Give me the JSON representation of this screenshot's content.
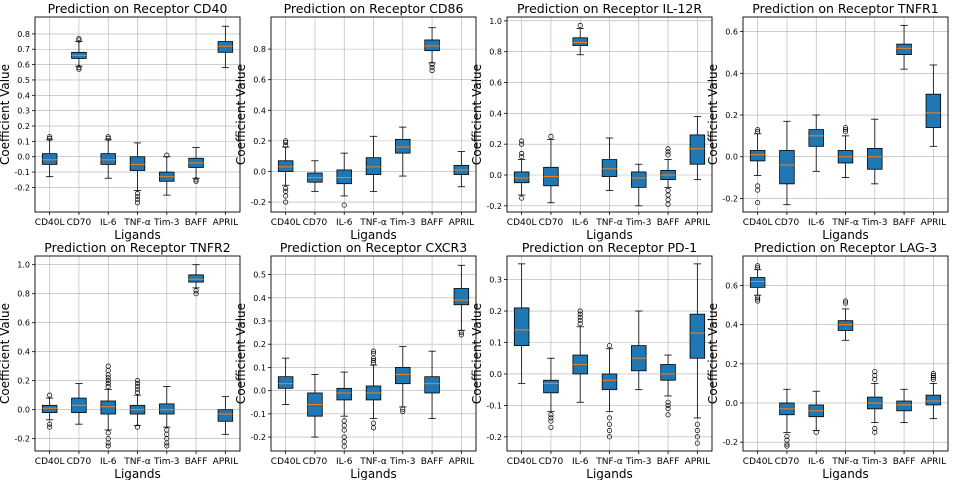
{
  "chart_data": [
    {
      "type": "box",
      "title": "Prediction on Receptor CD40",
      "xlabel": "Ligands",
      "ylabel": "Coefficient Value",
      "categories": [
        "CD40L",
        "CD70",
        "IL-6",
        "TNF-α",
        "Tim-3",
        "BAFF",
        "APRIL"
      ],
      "ylim": [
        -0.36,
        0.91
      ],
      "yticks": [
        -0.2,
        -0.1,
        0.0,
        0.1,
        0.2,
        0.3,
        0.4,
        0.5,
        0.6,
        0.7,
        0.8
      ],
      "boxes": [
        {
          "q1": -0.05,
          "median": -0.02,
          "q3": 0.02,
          "whislo": -0.13,
          "whishi": 0.11,
          "fliers": [
            0.12,
            0.13
          ]
        },
        {
          "q1": 0.64,
          "median": 0.66,
          "q3": 0.68,
          "whislo": 0.59,
          "whishi": 0.75,
          "fliers": [
            0.57,
            0.58,
            0.76,
            0.77
          ]
        },
        {
          "q1": -0.05,
          "median": -0.02,
          "q3": 0.02,
          "whislo": -0.14,
          "whishi": 0.11,
          "fliers": [
            0.12,
            0.13
          ]
        },
        {
          "q1": -0.09,
          "median": -0.05,
          "q3": 0.0,
          "whislo": -0.22,
          "whishi": 0.09,
          "fliers": [
            -0.24,
            -0.26,
            -0.28,
            -0.3
          ]
        },
        {
          "q1": -0.16,
          "median": -0.13,
          "q3": -0.1,
          "whislo": -0.25,
          "whishi": 0.0,
          "fliers": [
            0.01
          ]
        },
        {
          "q1": -0.07,
          "median": -0.04,
          "q3": -0.01,
          "whislo": -0.14,
          "whishi": 0.06,
          "fliers": [
            -0.15,
            -0.16
          ]
        },
        {
          "q1": 0.68,
          "median": 0.72,
          "q3": 0.75,
          "whislo": 0.58,
          "whishi": 0.85,
          "fliers": []
        }
      ]
    },
    {
      "type": "box",
      "title": "Prediction on Receptor CD86",
      "xlabel": "Ligands",
      "ylabel": "Coefficient Value",
      "categories": [
        "CD40L",
        "CD70",
        "IL-6",
        "TNF-α",
        "Tim-3",
        "BAFF",
        "APRIL"
      ],
      "ylim": [
        -0.265,
        1.01
      ],
      "yticks": [
        -0.2,
        0.0,
        0.2,
        0.4,
        0.6,
        0.8
      ],
      "boxes": [
        {
          "q1": 0.0,
          "median": 0.03,
          "q3": 0.07,
          "whislo": -0.09,
          "whishi": 0.16,
          "fliers": [
            -0.11,
            -0.13,
            -0.16,
            -0.2,
            0.17,
            0.19,
            0.2
          ]
        },
        {
          "q1": -0.07,
          "median": -0.04,
          "q3": -0.01,
          "whislo": -0.13,
          "whishi": 0.07,
          "fliers": []
        },
        {
          "q1": -0.08,
          "median": -0.04,
          "q3": 0.01,
          "whislo": -0.16,
          "whishi": 0.12,
          "fliers": [
            -0.22
          ]
        },
        {
          "q1": -0.02,
          "median": 0.03,
          "q3": 0.09,
          "whislo": -0.13,
          "whishi": 0.23,
          "fliers": []
        },
        {
          "q1": 0.12,
          "median": 0.16,
          "q3": 0.21,
          "whislo": -0.03,
          "whishi": 0.29,
          "fliers": []
        },
        {
          "q1": 0.79,
          "median": 0.82,
          "q3": 0.86,
          "whislo": 0.71,
          "whishi": 0.94,
          "fliers": [
            0.66,
            0.68,
            0.7
          ]
        },
        {
          "q1": -0.02,
          "median": 0.01,
          "q3": 0.04,
          "whislo": -0.1,
          "whishi": 0.13,
          "fliers": []
        }
      ]
    },
    {
      "type": "box",
      "title": "Prediction on Receptor IL-12R",
      "xlabel": "Ligands",
      "ylabel": "Coefficient Value",
      "categories": [
        "CD40L",
        "CD70",
        "IL-6",
        "TNF-α",
        "Tim-3",
        "BAFF",
        "APRIL"
      ],
      "ylim": [
        -0.24,
        1.025
      ],
      "yticks": [
        -0.2,
        0.0,
        0.2,
        0.4,
        0.6,
        0.8,
        1.0
      ],
      "boxes": [
        {
          "q1": -0.05,
          "median": -0.02,
          "q3": 0.02,
          "whislo": -0.13,
          "whishi": 0.1,
          "fliers": [
            -0.15,
            0.12,
            0.14,
            0.2,
            0.22
          ]
        },
        {
          "q1": -0.07,
          "median": -0.01,
          "q3": 0.05,
          "whislo": -0.18,
          "whishi": 0.23,
          "fliers": [
            0.25
          ]
        },
        {
          "q1": 0.84,
          "median": 0.86,
          "q3": 0.89,
          "whislo": 0.78,
          "whishi": 0.95,
          "fliers": [
            0.97
          ]
        },
        {
          "q1": -0.01,
          "median": 0.04,
          "q3": 0.1,
          "whislo": -0.1,
          "whishi": 0.24,
          "fliers": []
        },
        {
          "q1": -0.08,
          "median": -0.02,
          "q3": 0.02,
          "whislo": -0.2,
          "whishi": 0.07,
          "fliers": []
        },
        {
          "q1": -0.03,
          "median": 0.0,
          "q3": 0.03,
          "whislo": -0.08,
          "whishi": 0.1,
          "fliers": [
            -0.1,
            -0.13,
            -0.16,
            -0.19,
            0.13,
            0.15,
            0.17
          ]
        },
        {
          "q1": 0.07,
          "median": 0.17,
          "q3": 0.26,
          "whislo": -0.03,
          "whishi": 0.38,
          "fliers": []
        }
      ]
    },
    {
      "type": "box",
      "title": "Prediction on Receptor TNFR1",
      "xlabel": "Ligands",
      "ylabel": "Coefficient Value",
      "categories": [
        "CD40L",
        "CD70",
        "IL-6",
        "TNF-α",
        "Tim-3",
        "BAFF",
        "APRIL"
      ],
      "ylim": [
        -0.265,
        0.67
      ],
      "yticks": [
        -0.2,
        0.0,
        0.2,
        0.4,
        0.6
      ],
      "boxes": [
        {
          "q1": -0.02,
          "median": 0.01,
          "q3": 0.03,
          "whislo": -0.09,
          "whishi": 0.11,
          "fliers": [
            -0.14,
            -0.16,
            -0.22,
            0.12,
            0.13
          ]
        },
        {
          "q1": -0.13,
          "median": -0.04,
          "q3": 0.03,
          "whislo": -0.23,
          "whishi": 0.17,
          "fliers": []
        },
        {
          "q1": 0.05,
          "median": 0.1,
          "q3": 0.13,
          "whislo": -0.07,
          "whishi": 0.2,
          "fliers": []
        },
        {
          "q1": -0.03,
          "median": 0.0,
          "q3": 0.03,
          "whislo": -0.1,
          "whishi": 0.1,
          "fliers": [
            0.12,
            0.13,
            0.14
          ]
        },
        {
          "q1": -0.06,
          "median": 0.0,
          "q3": 0.04,
          "whislo": -0.13,
          "whishi": 0.18,
          "fliers": []
        },
        {
          "q1": 0.49,
          "median": 0.52,
          "q3": 0.54,
          "whislo": 0.42,
          "whishi": 0.63,
          "fliers": []
        },
        {
          "q1": 0.14,
          "median": 0.21,
          "q3": 0.3,
          "whislo": 0.05,
          "whishi": 0.44,
          "fliers": []
        }
      ]
    },
    {
      "type": "box",
      "title": "Prediction on Receptor TNFR2",
      "xlabel": "Ligands",
      "ylabel": "Coefficient Value",
      "categories": [
        "CD40L",
        "CD70",
        "IL-6",
        "TNF-α",
        "Tim-3",
        "BAFF",
        "APRIL"
      ],
      "ylim": [
        -0.285,
        1.06
      ],
      "yticks": [
        -0.2,
        0.0,
        0.2,
        0.4,
        0.6,
        0.8,
        1.0
      ],
      "boxes": [
        {
          "q1": -0.02,
          "median": 0.01,
          "q3": 0.03,
          "whislo": -0.07,
          "whishi": 0.08,
          "fliers": [
            -0.1,
            -0.12,
            0.1
          ]
        },
        {
          "q1": -0.02,
          "median": 0.03,
          "q3": 0.08,
          "whislo": -0.1,
          "whishi": 0.18,
          "fliers": []
        },
        {
          "q1": -0.03,
          "median": 0.02,
          "q3": 0.06,
          "whislo": -0.14,
          "whishi": 0.14,
          "fliers": [
            -0.16,
            -0.2,
            -0.23,
            -0.25,
            0.16,
            0.18,
            0.2,
            0.22,
            0.24,
            0.27,
            0.3
          ]
        },
        {
          "q1": -0.03,
          "median": 0.0,
          "q3": 0.03,
          "whislo": -0.11,
          "whishi": 0.1,
          "fliers": [
            -0.12,
            0.12,
            0.14,
            0.16,
            0.18,
            0.2
          ]
        },
        {
          "q1": -0.03,
          "median": 0.0,
          "q3": 0.04,
          "whislo": -0.12,
          "whishi": 0.16,
          "fliers": [
            -0.14,
            -0.17,
            -0.2,
            -0.23,
            -0.25
          ]
        },
        {
          "q1": 0.88,
          "median": 0.9,
          "q3": 0.93,
          "whislo": 0.84,
          "whishi": 1.0,
          "fliers": [
            0.8,
            0.82
          ]
        },
        {
          "q1": -0.08,
          "median": -0.03,
          "q3": 0.0,
          "whislo": -0.17,
          "whishi": 0.09,
          "fliers": []
        }
      ]
    },
    {
      "type": "box",
      "title": "Prediction on Receptor CXCR3",
      "xlabel": "Ligands",
      "ylabel": "Coefficient Value",
      "categories": [
        "CD40L",
        "CD70",
        "IL-6",
        "TNF-α",
        "Tim-3",
        "BAFF",
        "APRIL"
      ],
      "ylim": [
        -0.26,
        0.58
      ],
      "yticks": [
        -0.2,
        -0.1,
        0.0,
        0.1,
        0.2,
        0.3,
        0.4,
        0.5
      ],
      "boxes": [
        {
          "q1": 0.01,
          "median": 0.03,
          "q3": 0.06,
          "whislo": -0.06,
          "whishi": 0.14,
          "fliers": []
        },
        {
          "q1": -0.11,
          "median": -0.06,
          "q3": -0.01,
          "whislo": -0.2,
          "whishi": 0.07,
          "fliers": []
        },
        {
          "q1": -0.04,
          "median": -0.01,
          "q3": 0.01,
          "whislo": -0.11,
          "whishi": 0.08,
          "fliers": [
            -0.13,
            -0.15,
            -0.17,
            -0.2,
            -0.22,
            -0.24
          ]
        },
        {
          "q1": -0.04,
          "median": -0.01,
          "q3": 0.02,
          "whislo": -0.12,
          "whishi": 0.11,
          "fliers": [
            -0.14,
            -0.16,
            0.12,
            0.13,
            0.14,
            0.16,
            0.17
          ]
        },
        {
          "q1": 0.03,
          "median": 0.07,
          "q3": 0.1,
          "whislo": -0.07,
          "whishi": 0.19,
          "fliers": [
            -0.08,
            -0.09
          ]
        },
        {
          "q1": -0.01,
          "median": 0.03,
          "q3": 0.06,
          "whislo": -0.12,
          "whishi": 0.17,
          "fliers": []
        },
        {
          "q1": 0.37,
          "median": 0.39,
          "q3": 0.44,
          "whislo": 0.26,
          "whishi": 0.54,
          "fliers": [
            0.24,
            0.25
          ]
        }
      ]
    },
    {
      "type": "box",
      "title": "Prediction on Receptor PD-1",
      "xlabel": "Ligands",
      "ylabel": "Coefficient Value",
      "categories": [
        "CD40L",
        "CD70",
        "IL-6",
        "TNF-α",
        "Tim-3",
        "BAFF",
        "APRIL"
      ],
      "ylim": [
        -0.245,
        0.375
      ],
      "yticks": [
        -0.2,
        -0.1,
        0.0,
        0.1,
        0.2,
        0.3
      ],
      "boxes": [
        {
          "q1": 0.09,
          "median": 0.14,
          "q3": 0.21,
          "whislo": -0.03,
          "whishi": 0.35,
          "fliers": []
        },
        {
          "q1": -0.06,
          "median": -0.03,
          "q3": -0.02,
          "whislo": -0.12,
          "whishi": 0.05,
          "fliers": [
            -0.13,
            -0.14,
            -0.15,
            -0.17
          ]
        },
        {
          "q1": 0.0,
          "median": 0.03,
          "q3": 0.06,
          "whislo": -0.09,
          "whishi": 0.15,
          "fliers": [
            0.16,
            0.17,
            0.18,
            0.19,
            0.2
          ]
        },
        {
          "q1": -0.05,
          "median": -0.02,
          "q3": 0.0,
          "whislo": -0.12,
          "whishi": 0.08,
          "fliers": [
            -0.14,
            -0.16,
            -0.18,
            -0.2,
            0.09
          ]
        },
        {
          "q1": 0.01,
          "median": 0.05,
          "q3": 0.09,
          "whislo": -0.05,
          "whishi": 0.2,
          "fliers": []
        },
        {
          "q1": -0.02,
          "median": 0.0,
          "q3": 0.03,
          "whislo": -0.07,
          "whishi": 0.06,
          "fliers": [
            -0.09,
            -0.1,
            -0.11,
            -0.13
          ]
        },
        {
          "q1": 0.05,
          "median": 0.13,
          "q3": 0.19,
          "whislo": -0.14,
          "whishi": 0.35,
          "fliers": [
            -0.16,
            -0.18,
            -0.2,
            -0.22
          ]
        }
      ]
    },
    {
      "type": "box",
      "title": "Prediction on Receptor LAG-3",
      "xlabel": "Ligands",
      "ylabel": "Coefficient Value",
      "categories": [
        "CD40L",
        "CD70",
        "IL-6",
        "TNF-α",
        "Tim-3",
        "BAFF",
        "APRIL"
      ],
      "ylim": [
        -0.245,
        0.75
      ],
      "yticks": [
        -0.2,
        0.0,
        0.2,
        0.4,
        0.6
      ],
      "boxes": [
        {
          "q1": 0.59,
          "median": 0.62,
          "q3": 0.64,
          "whislo": 0.55,
          "whishi": 0.68,
          "fliers": [
            0.52,
            0.53,
            0.54,
            0.69,
            0.7
          ]
        },
        {
          "q1": -0.06,
          "median": -0.03,
          "q3": 0.0,
          "whislo": -0.15,
          "whishi": 0.07,
          "fliers": [
            -0.17,
            -0.19,
            -0.21,
            -0.22
          ]
        },
        {
          "q1": -0.07,
          "median": -0.04,
          "q3": -0.01,
          "whislo": -0.14,
          "whishi": 0.06,
          "fliers": [
            -0.15
          ]
        },
        {
          "q1": 0.37,
          "median": 0.4,
          "q3": 0.42,
          "whislo": 0.32,
          "whishi": 0.48,
          "fliers": [
            0.51,
            0.52
          ]
        },
        {
          "q1": -0.03,
          "median": 0.0,
          "q3": 0.03,
          "whislo": -0.1,
          "whishi": 0.1,
          "fliers": [
            -0.13,
            -0.15,
            0.12,
            0.14,
            0.16
          ]
        },
        {
          "q1": -0.04,
          "median": -0.01,
          "q3": 0.01,
          "whislo": -0.1,
          "whishi": 0.07,
          "fliers": []
        },
        {
          "q1": -0.01,
          "median": 0.01,
          "q3": 0.04,
          "whislo": -0.08,
          "whishi": 0.1,
          "fliers": [
            0.12,
            0.13,
            0.14,
            0.15
          ]
        }
      ]
    }
  ],
  "colors": {
    "box": "#1f77b4",
    "median": "#ff7f0e",
    "grid": "#b0b0b0"
  }
}
